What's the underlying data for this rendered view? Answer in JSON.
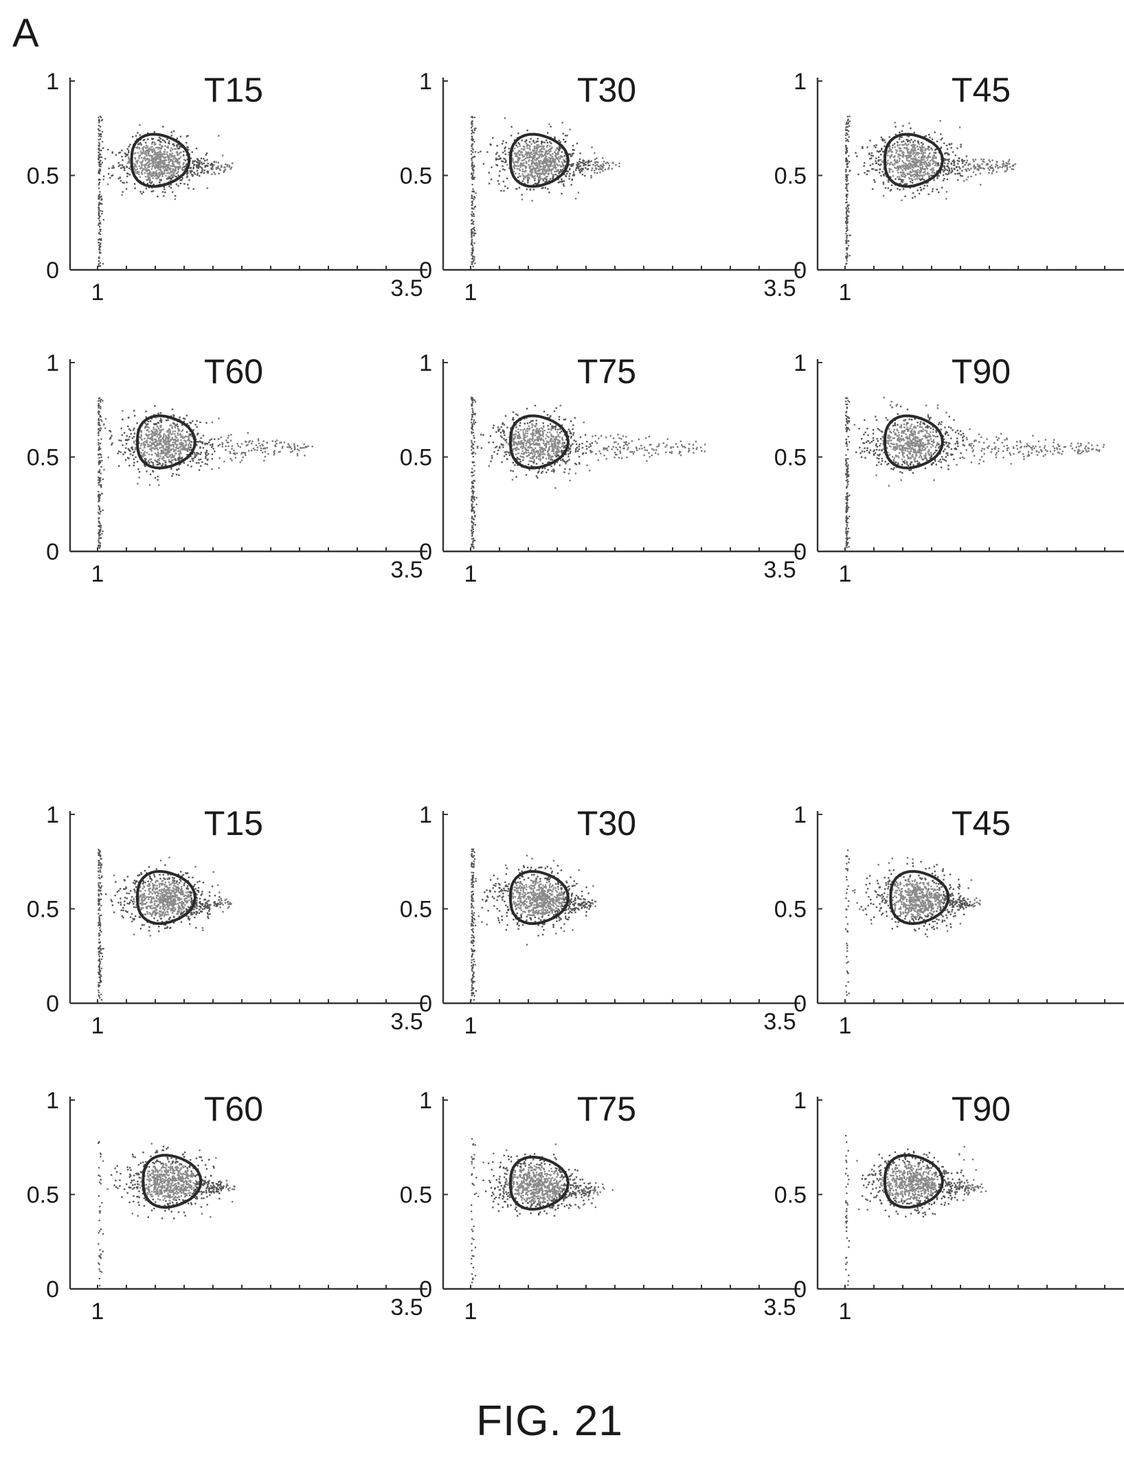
{
  "figure": {
    "panel_letter": "A",
    "caption": "FIG. 21"
  },
  "chart_data": [
    {
      "type": "scatter",
      "title": "T15",
      "xlim": [
        1,
        3.5
      ],
      "ylim": [
        0,
        1
      ],
      "x_ticklabels": [
        "1",
        "3.5"
      ],
      "y_ticklabels": [
        "0",
        "0.5",
        "1"
      ],
      "cluster": {
        "center_x": 1.5,
        "center_y": 0.58,
        "x_extent_max": 2.1
      },
      "gate": {
        "center_x": 1.5,
        "center_y": 0.58
      }
    },
    {
      "type": "scatter",
      "title": "T30",
      "xlim": [
        1,
        3.5
      ],
      "ylim": [
        0,
        1
      ],
      "x_ticklabels": [
        "1",
        "3.5"
      ],
      "y_ticklabels": [
        "0",
        "0.5",
        "1"
      ],
      "cluster": {
        "center_x": 1.55,
        "center_y": 0.58,
        "x_extent_max": 2.2
      },
      "gate": {
        "center_x": 1.55,
        "center_y": 0.58
      }
    },
    {
      "type": "scatter",
      "title": "T45",
      "xlim": [
        1,
        3.5
      ],
      "ylim": [
        0,
        1
      ],
      "x_ticklabels": [
        "1",
        "3.5"
      ],
      "y_ticklabels": [
        "0",
        "0.5",
        "1"
      ],
      "cluster": {
        "center_x": 1.55,
        "center_y": 0.58,
        "x_extent_max": 2.45
      },
      "gate": {
        "center_x": 1.55,
        "center_y": 0.58
      }
    },
    {
      "type": "scatter",
      "title": "T60",
      "xlim": [
        1,
        3.5
      ],
      "ylim": [
        0,
        1
      ],
      "x_ticklabels": [
        "1",
        "3.5"
      ],
      "y_ticklabels": [
        "0",
        "0.5",
        "1"
      ],
      "cluster": {
        "center_x": 1.55,
        "center_y": 0.58,
        "x_extent_max": 2.8
      },
      "gate": {
        "center_x": 1.55,
        "center_y": 0.58
      }
    },
    {
      "type": "scatter",
      "title": "T75",
      "xlim": [
        1,
        3.5
      ],
      "ylim": [
        0,
        1
      ],
      "x_ticklabels": [
        "1",
        "3.5"
      ],
      "y_ticklabels": [
        "0",
        "0.5",
        "1"
      ],
      "cluster": {
        "center_x": 1.55,
        "center_y": 0.58,
        "x_extent_max": 3.0
      },
      "gate": {
        "center_x": 1.55,
        "center_y": 0.58
      }
    },
    {
      "type": "scatter",
      "title": "T90",
      "xlim": [
        1,
        3.5
      ],
      "ylim": [
        0,
        1
      ],
      "x_ticklabels": [
        "1",
        "3.5"
      ],
      "y_ticklabels": [
        "0",
        "0.5",
        "1"
      ],
      "cluster": {
        "center_x": 1.55,
        "center_y": 0.58,
        "x_extent_max": 3.2
      },
      "gate": {
        "center_x": 1.55,
        "center_y": 0.58
      }
    },
    {
      "type": "scatter",
      "title": "T15",
      "xlim": [
        1,
        3.5
      ],
      "ylim": [
        0,
        1
      ],
      "x_ticklabels": [
        "1",
        "3.5"
      ],
      "y_ticklabels": [
        "0",
        "0.5",
        "1"
      ],
      "cluster": {
        "center_x": 1.55,
        "center_y": 0.56,
        "x_extent_max": 2.1
      },
      "gate": {
        "center_x": 1.55,
        "center_y": 0.56
      }
    },
    {
      "type": "scatter",
      "title": "T30",
      "xlim": [
        1,
        3.5
      ],
      "ylim": [
        0,
        1
      ],
      "x_ticklabels": [
        "1",
        "3.5"
      ],
      "y_ticklabels": [
        "0",
        "0.5",
        "1"
      ],
      "cluster": {
        "center_x": 1.55,
        "center_y": 0.56,
        "x_extent_max": 2.05
      },
      "gate": {
        "center_x": 1.55,
        "center_y": 0.56
      }
    },
    {
      "type": "scatter",
      "title": "T45",
      "xlim": [
        1,
        3.5
      ],
      "ylim": [
        0,
        1
      ],
      "x_ticklabels": [
        "1",
        "3.5"
      ],
      "y_ticklabels": [
        "0",
        "0.5",
        "1"
      ],
      "cluster": {
        "center_x": 1.6,
        "center_y": 0.56,
        "x_extent_max": 2.1
      },
      "gate": {
        "center_x": 1.6,
        "center_y": 0.56
      }
    },
    {
      "type": "scatter",
      "title": "T60",
      "xlim": [
        1,
        3.5
      ],
      "ylim": [
        0,
        1
      ],
      "x_ticklabels": [
        "1",
        "3.5"
      ],
      "y_ticklabels": [
        "0",
        "0.5",
        "1"
      ],
      "cluster": {
        "center_x": 1.6,
        "center_y": 0.57,
        "x_extent_max": 2.1
      },
      "gate": {
        "center_x": 1.6,
        "center_y": 0.57
      }
    },
    {
      "type": "scatter",
      "title": "T75",
      "xlim": [
        1,
        3.5
      ],
      "ylim": [
        0,
        1
      ],
      "x_ticklabels": [
        "1",
        "3.5"
      ],
      "y_ticklabels": [
        "0",
        "0.5",
        "1"
      ],
      "cluster": {
        "center_x": 1.55,
        "center_y": 0.56,
        "x_extent_max": 2.1
      },
      "gate": {
        "center_x": 1.55,
        "center_y": 0.56
      }
    },
    {
      "type": "scatter",
      "title": "T90",
      "xlim": [
        1,
        3.5
      ],
      "ylim": [
        0,
        1
      ],
      "x_ticklabels": [
        "1",
        "3.5"
      ],
      "y_ticklabels": [
        "0",
        "0.5",
        "1"
      ],
      "cluster": {
        "center_x": 1.55,
        "center_y": 0.57,
        "x_extent_max": 2.15
      },
      "gate": {
        "center_x": 1.55,
        "center_y": 0.57
      }
    }
  ]
}
